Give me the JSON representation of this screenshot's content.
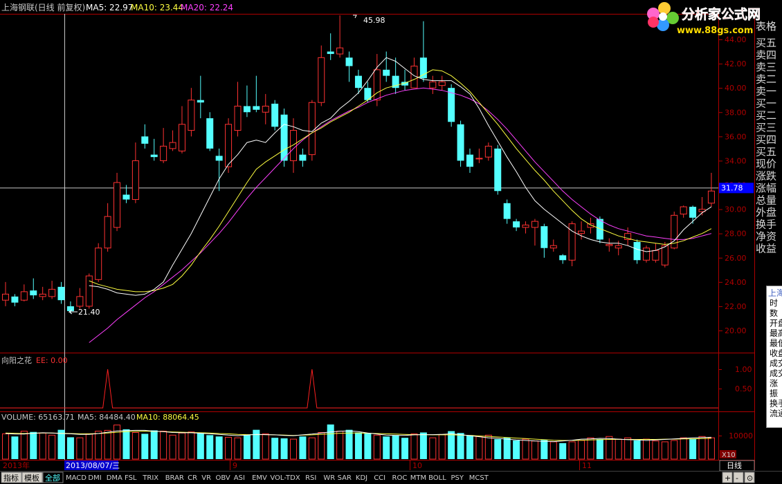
{
  "header": {
    "title": "上海钢联(日线 前复权)",
    "ma5": "MA5: 22.97",
    "ma10": "MA10: 23.44",
    "ma20": "MA20: 22.24"
  },
  "logo": {
    "name": "分析家公式网",
    "url": "www.88gs.com"
  },
  "price_axis": {
    "labels": [
      "44.00",
      "42.00",
      "40.00",
      "38.00",
      "36.00",
      "34.00",
      "32.00",
      "30.00",
      "28.00",
      "26.00",
      "24.00",
      "22.00",
      "20.00"
    ],
    "current_price": "31.78",
    "top_partial": "表格"
  },
  "annotations": {
    "high": "45.98",
    "low": "21.40"
  },
  "indicator": {
    "name": "向阳之花",
    "ee": "EE: 0.00",
    "axis": [
      "1.00",
      "0.50"
    ]
  },
  "volume": {
    "vol": "VOLUME: 65163.71",
    "ma5": "MA5: 84484.40",
    "ma10": "MA10: 88064.45",
    "axis_label": "10000",
    "unit": "X10"
  },
  "date_axis": {
    "year": "2013年",
    "cursor_date": "2013/08/07/三",
    "months": [
      "9",
      "10",
      "11"
    ]
  },
  "side_labels": [
    "买五",
    "卖四",
    "卖三",
    "卖二",
    "卖一",
    "买一",
    "买二",
    "买三",
    "买四",
    "买五",
    "现价",
    "涨跌",
    "涨幅",
    "总量",
    "外盘",
    "换手",
    "净资",
    "收益"
  ],
  "info_panel": {
    "rows": [
      "上海",
      "时",
      "数",
      "开盘",
      "最高",
      "最低",
      "收盘",
      "成交",
      "成交",
      "涨",
      "振",
      "换手",
      "流通"
    ]
  },
  "bottom_tabs": {
    "left": [
      "指标",
      "模板",
      "全部"
    ],
    "indicators": [
      "MACD",
      "DMI",
      "DMA",
      "FSL",
      "TRIX",
      "BRAR",
      "CR",
      "VR",
      "OBV",
      "ASI",
      "EMV",
      "VOL-TDX",
      "RSI",
      "WR",
      "SAR",
      "KDJ",
      "CCI",
      "ROC",
      "MTM",
      "BOLL",
      "PSY",
      "MCST"
    ],
    "period": "日线",
    "buttons": [
      "+",
      "-",
      "⊙"
    ]
  },
  "colors": {
    "up": "#ff3232",
    "down": "#54ffff",
    "ma5": "#ffffff",
    "ma10": "#ffff40",
    "ma20": "#ff40ff",
    "axis": "#b00000",
    "price_hl": "#0000ff"
  },
  "chart_data": {
    "type": "candlestick",
    "ylim": [
      19,
      46
    ],
    "candles": [
      {
        "o": 22.5,
        "c": 23.0,
        "h": 24.0,
        "l": 22.0
      },
      {
        "o": 22.8,
        "c": 22.3,
        "h": 23.0,
        "l": 22.0
      },
      {
        "o": 22.5,
        "c": 23.2,
        "h": 23.8,
        "l": 22.4
      },
      {
        "o": 23.3,
        "c": 22.9,
        "h": 24.3,
        "l": 22.6
      },
      {
        "o": 22.8,
        "c": 23.0,
        "h": 23.6,
        "l": 22.5
      },
      {
        "o": 22.8,
        "c": 23.4,
        "h": 24.1,
        "l": 22.6
      },
      {
        "o": 23.6,
        "c": 22.5,
        "h": 24.0,
        "l": 22.2
      },
      {
        "o": 22.0,
        "c": 21.6,
        "h": 22.4,
        "l": 21.4
      },
      {
        "o": 22.0,
        "c": 22.8,
        "h": 23.5,
        "l": 21.8
      },
      {
        "o": 22.0,
        "c": 24.5,
        "h": 24.7,
        "l": 21.8
      },
      {
        "o": 24.2,
        "c": 26.8,
        "h": 27.2,
        "l": 24.0
      },
      {
        "o": 26.8,
        "c": 29.4,
        "h": 30.5,
        "l": 26.5
      },
      {
        "o": 28.5,
        "c": 32.2,
        "h": 33.0,
        "l": 28.2
      },
      {
        "o": 31.2,
        "c": 30.8,
        "h": 32.0,
        "l": 30.5
      },
      {
        "o": 30.8,
        "c": 34.0,
        "h": 35.5,
        "l": 30.5
      },
      {
        "o": 36.0,
        "c": 35.4,
        "h": 37.0,
        "l": 35.0
      },
      {
        "o": 34.5,
        "c": 34.3,
        "h": 35.8,
        "l": 34.0
      },
      {
        "o": 34.0,
        "c": 35.2,
        "h": 36.7,
        "l": 33.8
      },
      {
        "o": 35.0,
        "c": 35.5,
        "h": 36.5,
        "l": 34.8
      },
      {
        "o": 34.8,
        "c": 37.0,
        "h": 38.5,
        "l": 34.6
      },
      {
        "o": 36.5,
        "c": 39.0,
        "h": 40.0,
        "l": 36.0
      },
      {
        "o": 39.0,
        "c": 38.8,
        "h": 41.0,
        "l": 37.5
      },
      {
        "o": 37.5,
        "c": 35.0,
        "h": 38.0,
        "l": 34.8
      },
      {
        "o": 34.4,
        "c": 34.0,
        "h": 35.0,
        "l": 31.5
      },
      {
        "o": 33.5,
        "c": 37.0,
        "h": 37.5,
        "l": 33.0
      },
      {
        "o": 36.5,
        "c": 38.5,
        "h": 40.5,
        "l": 36.0
      },
      {
        "o": 38.5,
        "c": 38.0,
        "h": 40.2,
        "l": 37.6
      },
      {
        "o": 38.5,
        "c": 38.2,
        "h": 41.0,
        "l": 38.0
      },
      {
        "o": 38.0,
        "c": 38.5,
        "h": 39.5,
        "l": 37.0
      },
      {
        "o": 38.7,
        "c": 36.8,
        "h": 39.0,
        "l": 36.5
      },
      {
        "o": 37.8,
        "c": 34.0,
        "h": 38.3,
        "l": 33.5
      },
      {
        "o": 34.0,
        "c": 36.5,
        "h": 37.5,
        "l": 33.0
      },
      {
        "o": 34.5,
        "c": 34.0,
        "h": 35.0,
        "l": 33.5
      },
      {
        "o": 34.5,
        "c": 38.8,
        "h": 39.0,
        "l": 34.0
      },
      {
        "o": 38.8,
        "c": 42.5,
        "h": 43.5,
        "l": 38.5
      },
      {
        "o": 43.0,
        "c": 42.8,
        "h": 44.5,
        "l": 42.3
      },
      {
        "o": 42.8,
        "c": 43.3,
        "h": 45.98,
        "l": 42.5
      },
      {
        "o": 42.5,
        "c": 41.8,
        "h": 43.0,
        "l": 40.5
      },
      {
        "o": 41.0,
        "c": 40.0,
        "h": 41.5,
        "l": 39.5
      },
      {
        "o": 40.0,
        "c": 39.0,
        "h": 40.5,
        "l": 38.8
      },
      {
        "o": 39.0,
        "c": 41.5,
        "h": 42.8,
        "l": 38.5
      },
      {
        "o": 41.5,
        "c": 41.0,
        "h": 43.0,
        "l": 40.5
      },
      {
        "o": 41.0,
        "c": 40.0,
        "h": 42.5,
        "l": 39.5
      },
      {
        "o": 40.5,
        "c": 40.2,
        "h": 41.5,
        "l": 39.8
      },
      {
        "o": 40.0,
        "c": 41.8,
        "h": 42.5,
        "l": 40.0
      },
      {
        "o": 42.5,
        "c": 40.8,
        "h": 45.5,
        "l": 40.5
      },
      {
        "o": 40.0,
        "c": 40.5,
        "h": 41.0,
        "l": 39.5
      },
      {
        "o": 40.2,
        "c": 40.5,
        "h": 41.0,
        "l": 39.8
      },
      {
        "o": 40.0,
        "c": 37.2,
        "h": 40.3,
        "l": 36.8
      },
      {
        "o": 37.0,
        "c": 34.0,
        "h": 37.3,
        "l": 33.5
      },
      {
        "o": 34.5,
        "c": 33.5,
        "h": 35.0,
        "l": 33.0
      },
      {
        "o": 34.2,
        "c": 34.2,
        "h": 35.0,
        "l": 33.8
      },
      {
        "o": 34.3,
        "c": 35.2,
        "h": 35.5,
        "l": 34.0
      },
      {
        "o": 35.0,
        "c": 31.5,
        "h": 35.3,
        "l": 31.2
      },
      {
        "o": 30.5,
        "c": 29.2,
        "h": 30.8,
        "l": 28.8
      },
      {
        "o": 29.0,
        "c": 28.5,
        "h": 29.2,
        "l": 28.2
      },
      {
        "o": 28.5,
        "c": 28.7,
        "h": 29.0,
        "l": 28.0
      },
      {
        "o": 28.5,
        "c": 29.0,
        "h": 29.2,
        "l": 27.0
      },
      {
        "o": 28.6,
        "c": 26.8,
        "h": 28.8,
        "l": 26.0
      },
      {
        "o": 26.8,
        "c": 27.0,
        "h": 27.5,
        "l": 26.5
      },
      {
        "o": 26.2,
        "c": 25.8,
        "h": 26.3,
        "l": 25.5
      },
      {
        "o": 25.8,
        "c": 28.8,
        "h": 29.0,
        "l": 25.3
      },
      {
        "o": 28.0,
        "c": 28.2,
        "h": 29.0,
        "l": 27.5
      },
      {
        "o": 28.5,
        "c": 28.8,
        "h": 29.3,
        "l": 28.0
      },
      {
        "o": 29.2,
        "c": 27.5,
        "h": 29.4,
        "l": 27.2
      },
      {
        "o": 27.0,
        "c": 27.1,
        "h": 27.6,
        "l": 26.5
      },
      {
        "o": 26.8,
        "c": 27.0,
        "h": 27.4,
        "l": 26.2
      },
      {
        "o": 27.5,
        "c": 28.0,
        "h": 28.5,
        "l": 27.0
      },
      {
        "o": 27.3,
        "c": 25.8,
        "h": 27.5,
        "l": 25.5
      },
      {
        "o": 25.8,
        "c": 26.8,
        "h": 27.0,
        "l": 25.6
      },
      {
        "o": 25.8,
        "c": 26.6,
        "h": 27.2,
        "l": 25.6
      },
      {
        "o": 25.4,
        "c": 27.0,
        "h": 27.3,
        "l": 25.2
      },
      {
        "o": 26.8,
        "c": 29.5,
        "h": 29.8,
        "l": 26.7
      },
      {
        "o": 29.6,
        "c": 30.2,
        "h": 30.3,
        "l": 29.3
      },
      {
        "o": 30.2,
        "c": 29.3,
        "h": 30.3,
        "l": 28.8
      },
      {
        "o": 29.8,
        "c": 30.0,
        "h": 31.0,
        "l": 29.5
      },
      {
        "o": 30.5,
        "c": 31.5,
        "h": 33.0,
        "l": 30.2
      }
    ],
    "ma5": [
      23.7,
      23.6,
      23.4,
      23.1,
      23.0,
      22.9,
      23.0,
      23.4,
      24.0,
      25.4,
      26.7,
      28.0,
      29.5,
      31.0,
      32.5,
      33.7,
      34.5,
      35.5,
      35.7,
      35.5,
      36.3,
      37.0,
      36.8,
      36.5,
      36.4,
      37.1,
      37.5,
      38.3,
      38.9,
      39.6,
      40.6,
      41.7,
      42.5,
      42.2,
      41.6,
      41.0,
      40.7,
      40.6,
      40.6,
      40.6,
      40.1,
      39.5,
      38.3,
      36.9,
      35.6,
      34.3,
      33.1,
      31.8,
      30.7,
      30.0,
      29.4,
      28.8,
      28.2,
      27.8,
      27.5,
      27.3,
      27.2,
      27.2,
      27.0,
      26.7,
      26.5,
      26.6,
      26.9,
      27.4,
      28.3,
      29.0,
      29.7,
      30.2
    ],
    "ma10": [
      24.1,
      23.8,
      23.6,
      23.4,
      23.3,
      23.2,
      23.2,
      23.3,
      23.5,
      23.8,
      24.5,
      25.4,
      26.5,
      27.5,
      28.6,
      29.8,
      31.0,
      32.2,
      33.3,
      33.9,
      34.4,
      34.9,
      35.3,
      35.8,
      36.3,
      36.7,
      37.2,
      37.6,
      38.0,
      38.5,
      39.0,
      39.6,
      40.0,
      40.2,
      40.4,
      40.7,
      41.1,
      41.5,
      41.4,
      41.0,
      40.4,
      39.7,
      38.8,
      37.9,
      37.0,
      36.0,
      35.0,
      34.1,
      33.2,
      32.4,
      31.5,
      30.7,
      29.9,
      29.2,
      28.7,
      28.4,
      28.1,
      27.8,
      27.6,
      27.4,
      27.3,
      27.2,
      27.1,
      27.2,
      27.4,
      27.7,
      28.0,
      28.4
    ],
    "ma20": [
      19.0,
      19.6,
      20.2,
      20.9,
      21.5,
      22.1,
      22.7,
      23.2,
      23.8,
      24.4,
      25.0,
      25.7,
      26.4,
      27.2,
      28.0,
      28.9,
      29.9,
      30.9,
      31.8,
      32.6,
      33.4,
      34.2,
      35.0,
      35.7,
      36.3,
      36.8,
      37.3,
      37.7,
      38.1,
      38.4,
      38.8,
      39.1,
      39.4,
      39.6,
      39.8,
      39.9,
      40.0,
      39.9,
      39.8,
      39.6,
      39.4,
      39.1,
      38.7,
      38.1,
      37.4,
      36.6,
      35.7,
      34.8,
      33.9,
      33.1,
      32.3,
      31.5,
      30.8,
      30.2,
      29.6,
      29.1,
      28.7,
      28.4,
      28.2,
      28.0,
      27.8,
      27.7,
      27.6,
      27.5,
      27.5,
      27.6,
      27.8,
      28.0
    ],
    "ma_start_index": 9,
    "indicator_peaks": [
      {
        "index": 11,
        "value": 1.0
      },
      {
        "index": 33,
        "value": 1.0
      }
    ],
    "volumes": [
      9.5,
      8.5,
      10.5,
      10.2,
      9.8,
      9.0,
      11.0,
      8.2,
      8.0,
      9.5,
      10.5,
      10.8,
      12.8,
      11.2,
      10.0,
      9.5,
      10.8,
      10.5,
      9.0,
      9.8,
      10.2,
      10.0,
      9.0,
      8.5,
      8.2,
      8.0,
      9.0,
      11.0,
      9.5,
      8.0,
      7.8,
      7.5,
      8.5,
      8.0,
      10.0,
      13.0,
      10.5,
      11.0,
      10.0,
      9.8,
      9.0,
      8.5,
      9.0,
      8.0,
      9.5,
      10.0,
      8.0,
      9.2,
      10.5,
      9.8,
      9.0,
      8.5,
      9.0,
      7.5,
      8.0,
      7.0,
      7.5,
      6.8,
      7.2,
      6.5,
      6.0,
      6.5,
      7.0,
      8.0,
      7.5,
      8.5,
      7.5,
      8.0,
      7.0,
      7.5,
      6.8,
      6.5,
      7.0,
      8.0,
      7.5,
      8.5,
      8.0
    ],
    "vol_ma5": [
      9.6,
      9.4,
      9.4,
      9.7,
      9.9,
      9.8,
      9.6,
      9.5,
      9.3,
      9.3,
      9.6,
      10.1,
      10.6,
      10.7,
      10.8,
      10.8,
      10.5,
      10.3,
      10.0,
      9.9,
      9.9,
      9.7,
      9.5,
      9.3,
      9.0,
      8.8,
      9.0,
      9.3,
      9.2,
      9.1,
      8.9,
      8.8,
      9.1,
      9.4,
      9.8,
      10.2,
      10.5,
      10.6,
      10.3,
      9.8,
      9.4,
      9.0,
      8.9,
      8.9,
      9.1,
      9.2,
      9.2,
      9.3,
      9.5,
      9.2,
      8.8,
      8.4,
      8.0,
      7.8,
      7.5,
      7.2,
      7.0,
      6.8,
      6.7,
      6.6,
      6.8,
      7.1,
      7.5,
      7.6,
      7.8,
      7.7,
      7.5,
      7.3,
      7.2,
      7.0,
      7.2,
      7.4,
      7.6,
      7.8,
      8.0,
      8.1,
      8.2
    ],
    "vol_ma10": [
      9.8,
      9.7,
      9.6,
      9.7,
      9.8,
      9.8,
      9.7,
      9.6,
      9.5,
      9.5,
      9.6,
      9.8,
      10.1,
      10.3,
      10.4,
      10.5,
      10.4,
      10.3,
      10.2,
      10.1,
      10.0,
      9.9,
      9.8,
      9.6,
      9.5,
      9.3,
      9.2,
      9.2,
      9.2,
      9.1,
      9.0,
      8.9,
      9.0,
      9.1,
      9.3,
      9.5,
      9.7,
      9.8,
      9.8,
      9.7,
      9.6,
      9.5,
      9.4,
      9.3,
      9.2,
      9.2,
      9.1,
      9.1,
      9.1,
      9.0,
      8.9,
      8.7,
      8.5,
      8.3,
      8.1,
      7.9,
      7.7,
      7.5,
      7.3,
      7.1,
      7.0,
      7.0,
      7.1,
      7.2,
      7.3,
      7.4,
      7.4,
      7.4,
      7.4,
      7.4,
      7.4,
      7.5,
      7.5,
      7.6,
      7.6,
      7.7,
      7.8
    ],
    "vol_ylim": [
      0,
      13.5
    ]
  }
}
